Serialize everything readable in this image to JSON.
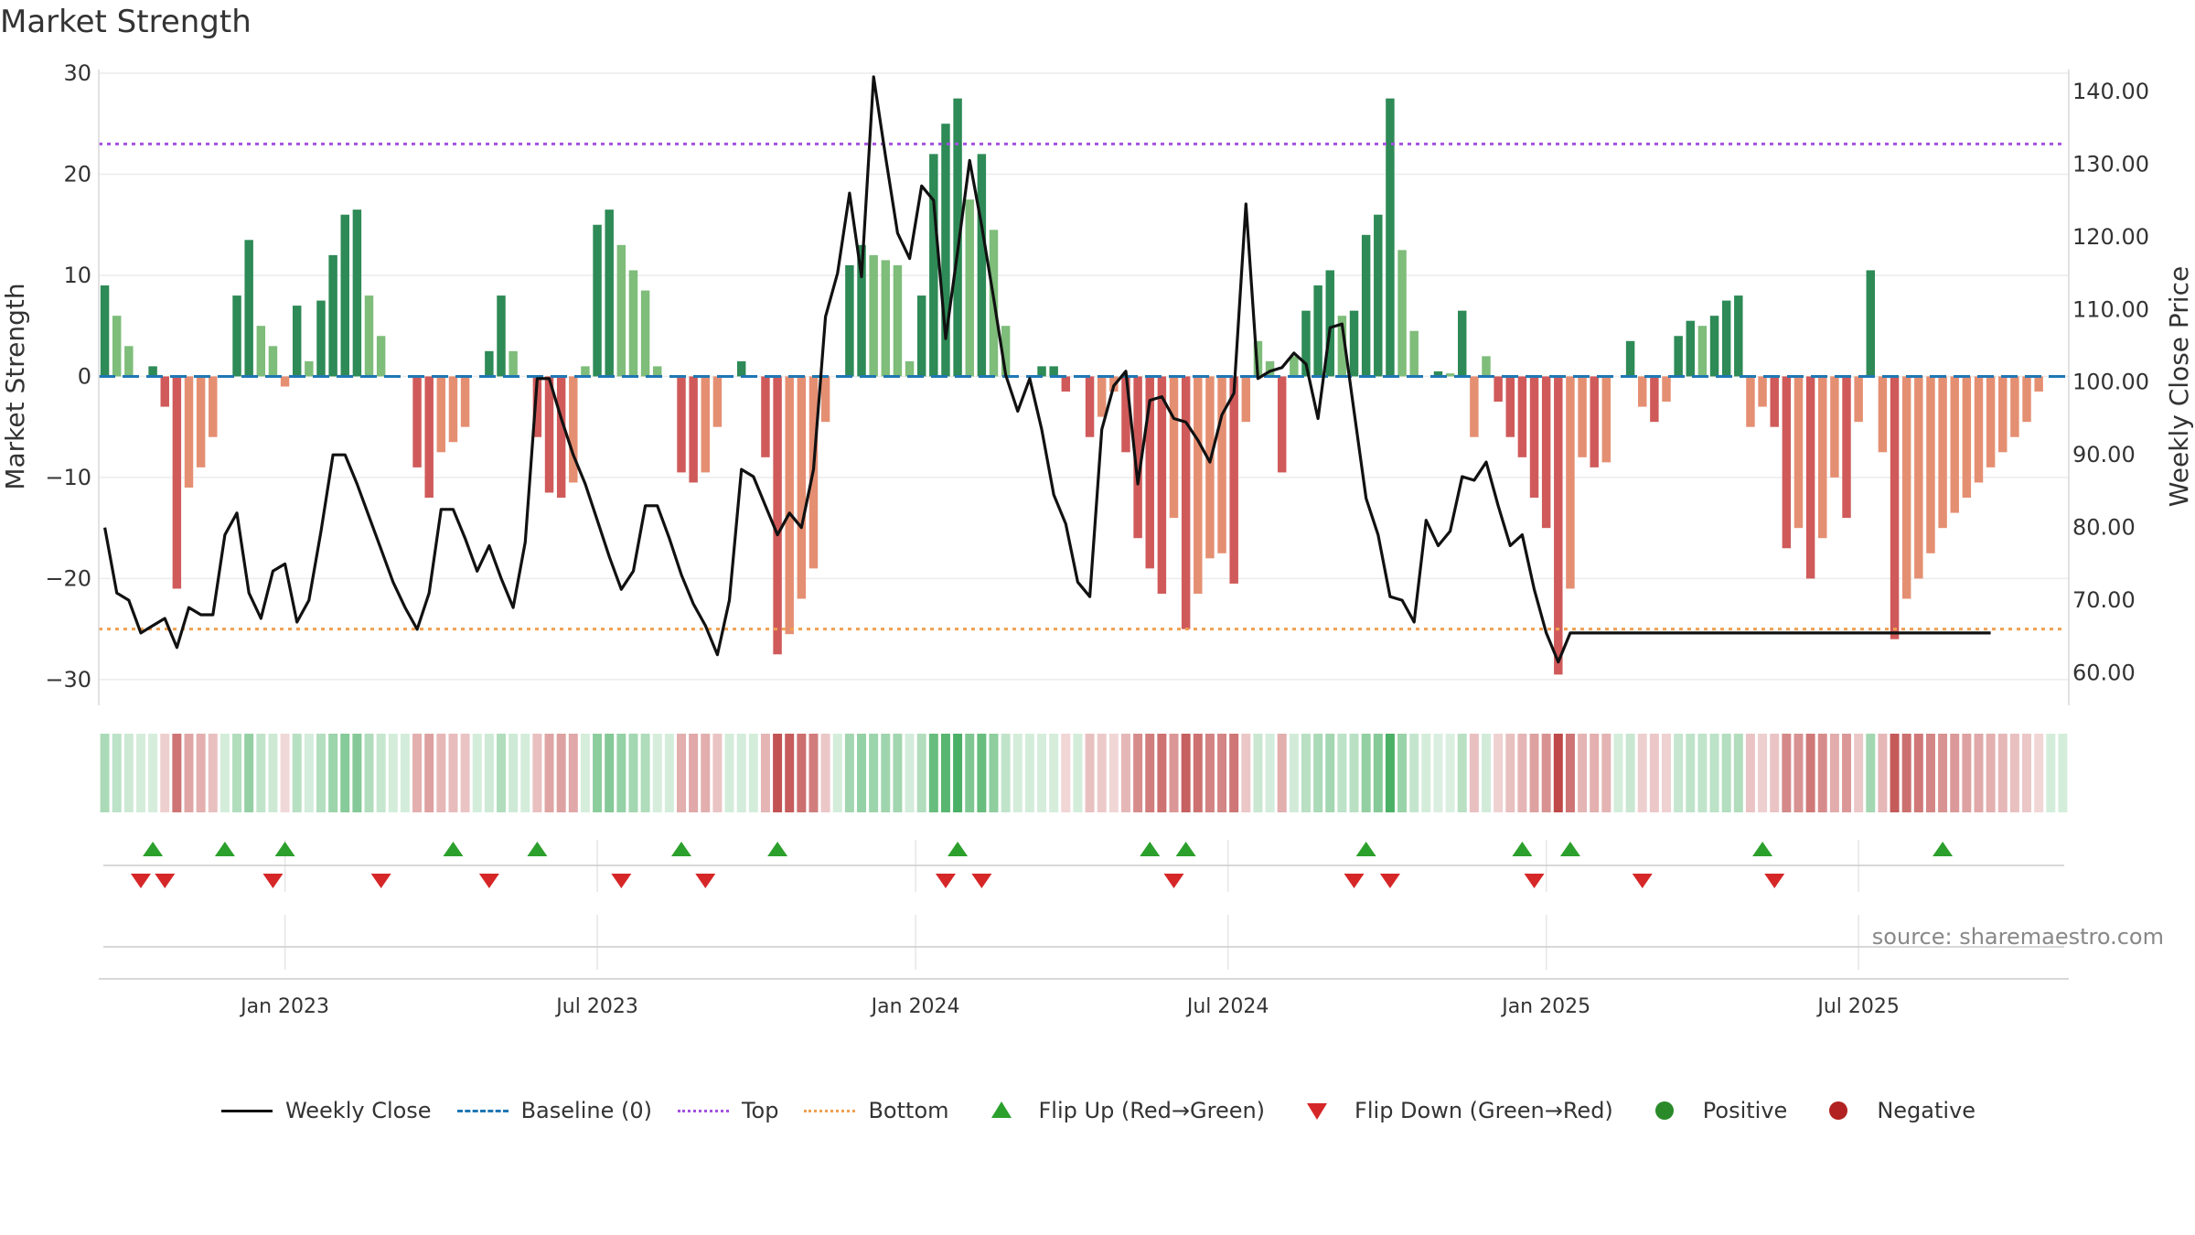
{
  "chart_data": {
    "type": "bar",
    "title": "Market Strength",
    "ylabel": "Market Strength",
    "y2label": "Weekly Close Price",
    "ylim": [
      -32,
      30
    ],
    "y2lim": [
      56.3,
      142.5
    ],
    "yticks": [
      30,
      20,
      10,
      0,
      -10,
      -20,
      -30
    ],
    "yticklabels": [
      "30",
      "20",
      "10",
      "0",
      "−10",
      "−20",
      "−30"
    ],
    "y2ticks": [
      140,
      130,
      120,
      110,
      100,
      90,
      80,
      70,
      60
    ],
    "y2ticklabels": [
      "140.00",
      "130.00",
      "120.00",
      "110.00",
      "100.00",
      "90.00",
      "80.00",
      "70.00",
      "60.00"
    ],
    "baseline": 0,
    "top_line": 23,
    "bottom_line": -25,
    "x_ticks": [
      {
        "week": 15,
        "label": "Jan 2023"
      },
      {
        "week": 41,
        "label": "Jul 2023"
      },
      {
        "week": 67.5,
        "label": "Jan 2024"
      },
      {
        "week": 93.5,
        "label": "Jul 2024"
      },
      {
        "week": 120,
        "label": "Jan 2025"
      },
      {
        "week": 146,
        "label": "Jul 2025"
      }
    ],
    "strength": [
      9,
      6,
      3,
      0,
      1,
      -3,
      -21,
      -11,
      -9,
      -6,
      0,
      8,
      13.5,
      5,
      3,
      -1,
      7,
      1.5,
      7.5,
      12,
      16,
      16.5,
      8,
      4,
      0,
      0,
      -9,
      -12,
      -7.5,
      -6.5,
      -5,
      0,
      2.5,
      8,
      2.5,
      0,
      -6,
      -11.5,
      -12,
      -10.5,
      1,
      15,
      16.5,
      13,
      10.5,
      8.5,
      1,
      0,
      -9.5,
      -10.5,
      -9.5,
      -5,
      0,
      1.5,
      0,
      -8,
      -27.5,
      -25.5,
      -22,
      -19,
      -4.5,
      0,
      11,
      13,
      12,
      11.5,
      11,
      1.5,
      8,
      22,
      25,
      27.5,
      17.5,
      22,
      14.5,
      5,
      0,
      0,
      1,
      1,
      -1.5,
      0,
      -6,
      -4,
      -1.5,
      -7.5,
      -16,
      -19,
      -21.5,
      -14,
      -25,
      -21.5,
      -18,
      -17.5,
      -20.5,
      -4.5,
      3.5,
      1.5,
      -9.5,
      2,
      6.5,
      9,
      10.5,
      6,
      6.5,
      14,
      16,
      27.5,
      12.5,
      4.5,
      0,
      0.5,
      0.3,
      6.5,
      -6,
      2,
      -2.5,
      -6,
      -8,
      -12,
      -15,
      -29.5,
      -21,
      -8,
      -9,
      -8.5,
      0,
      3.5,
      -3,
      -4.5,
      -2.5,
      4,
      5.5,
      5,
      6,
      7.5,
      8,
      -5,
      -3,
      -5,
      -17,
      -15,
      -20,
      -16,
      -10,
      -14,
      -4.5,
      10.5,
      -7.5,
      -26,
      -22,
      -20,
      -17.5,
      -15,
      -13.5,
      -12,
      -10.5,
      -9,
      -7.5,
      -6,
      -4.5,
      -1.5,
      0,
      0
    ],
    "weekly_close": [
      80,
      71,
      70,
      65.5,
      66.5,
      67.5,
      63.5,
      69,
      68,
      68,
      79,
      82,
      71,
      67.5,
      74,
      75,
      67,
      70,
      79.5,
      90,
      90,
      86,
      81.5,
      77,
      72.5,
      69,
      66,
      71,
      82.5,
      82.5,
      78.5,
      74,
      77.5,
      73,
      69,
      78,
      100.5,
      100.5,
      95,
      90,
      86,
      81,
      76,
      71.5,
      74,
      83,
      83,
      78.5,
      73.5,
      69.5,
      66.5,
      62.5,
      70,
      88,
      87,
      83,
      79,
      82,
      80,
      88,
      109,
      115,
      126,
      114.5,
      142,
      131,
      120.5,
      117,
      127,
      125,
      106,
      118,
      130.5,
      121.5,
      111.5,
      101,
      96,
      100.5,
      93.5,
      84.5,
      80.5,
      72.5,
      70.5,
      93.5,
      99.5,
      101.5,
      86,
      97.5,
      98,
      95,
      94.5,
      92,
      89,
      95.5,
      98.5,
      124.5,
      100.5,
      101.5,
      102,
      104,
      102.5,
      95,
      107.5,
      108,
      96,
      84,
      79,
      70.5,
      70,
      67,
      81,
      77.5,
      79.5,
      87,
      86.5,
      89,
      83,
      77.5,
      79,
      71.5,
      65.5,
      61.5,
      65.5,
      65.5,
      65.5,
      65.5,
      65.5,
      65.5,
      65.5,
      65.5,
      65.5,
      65.5,
      65.5,
      65.5,
      65.5,
      65.5,
      65.5,
      65.5,
      65.5,
      65.5,
      65.5,
      65.5,
      65.5,
      65.5,
      65.5,
      65.5,
      65.5,
      65.5,
      65.5,
      65.5,
      65.5,
      65.5,
      65.5,
      65.5,
      65.5,
      65.5,
      65.5,
      65.5
    ],
    "flip_up_weeks": [
      4,
      10,
      15,
      29,
      36,
      48,
      56,
      71,
      87,
      90,
      105,
      118,
      122,
      138,
      153
    ],
    "flip_down_weeks": [
      3,
      5,
      14,
      23,
      32,
      43,
      50,
      70,
      73,
      89,
      104,
      107,
      119,
      128,
      139
    ],
    "series": [
      {
        "name": "Weekly Close",
        "color": "#111111"
      },
      {
        "name": "Baseline (0)",
        "color": "#1f77b4"
      },
      {
        "name": "Top",
        "color": "#a352e0"
      },
      {
        "name": "Bottom",
        "color": "#f0a050"
      },
      {
        "name": "Flip Up (Red→Green)",
        "color": "#2ca02c"
      },
      {
        "name": "Flip Down (Green→Red)",
        "color": "#d62728"
      },
      {
        "name": "Positive",
        "color": "#2a8a2a"
      },
      {
        "name": "Negative",
        "color": "#b22222"
      }
    ]
  },
  "source_text": "source: sharemaestro.com"
}
